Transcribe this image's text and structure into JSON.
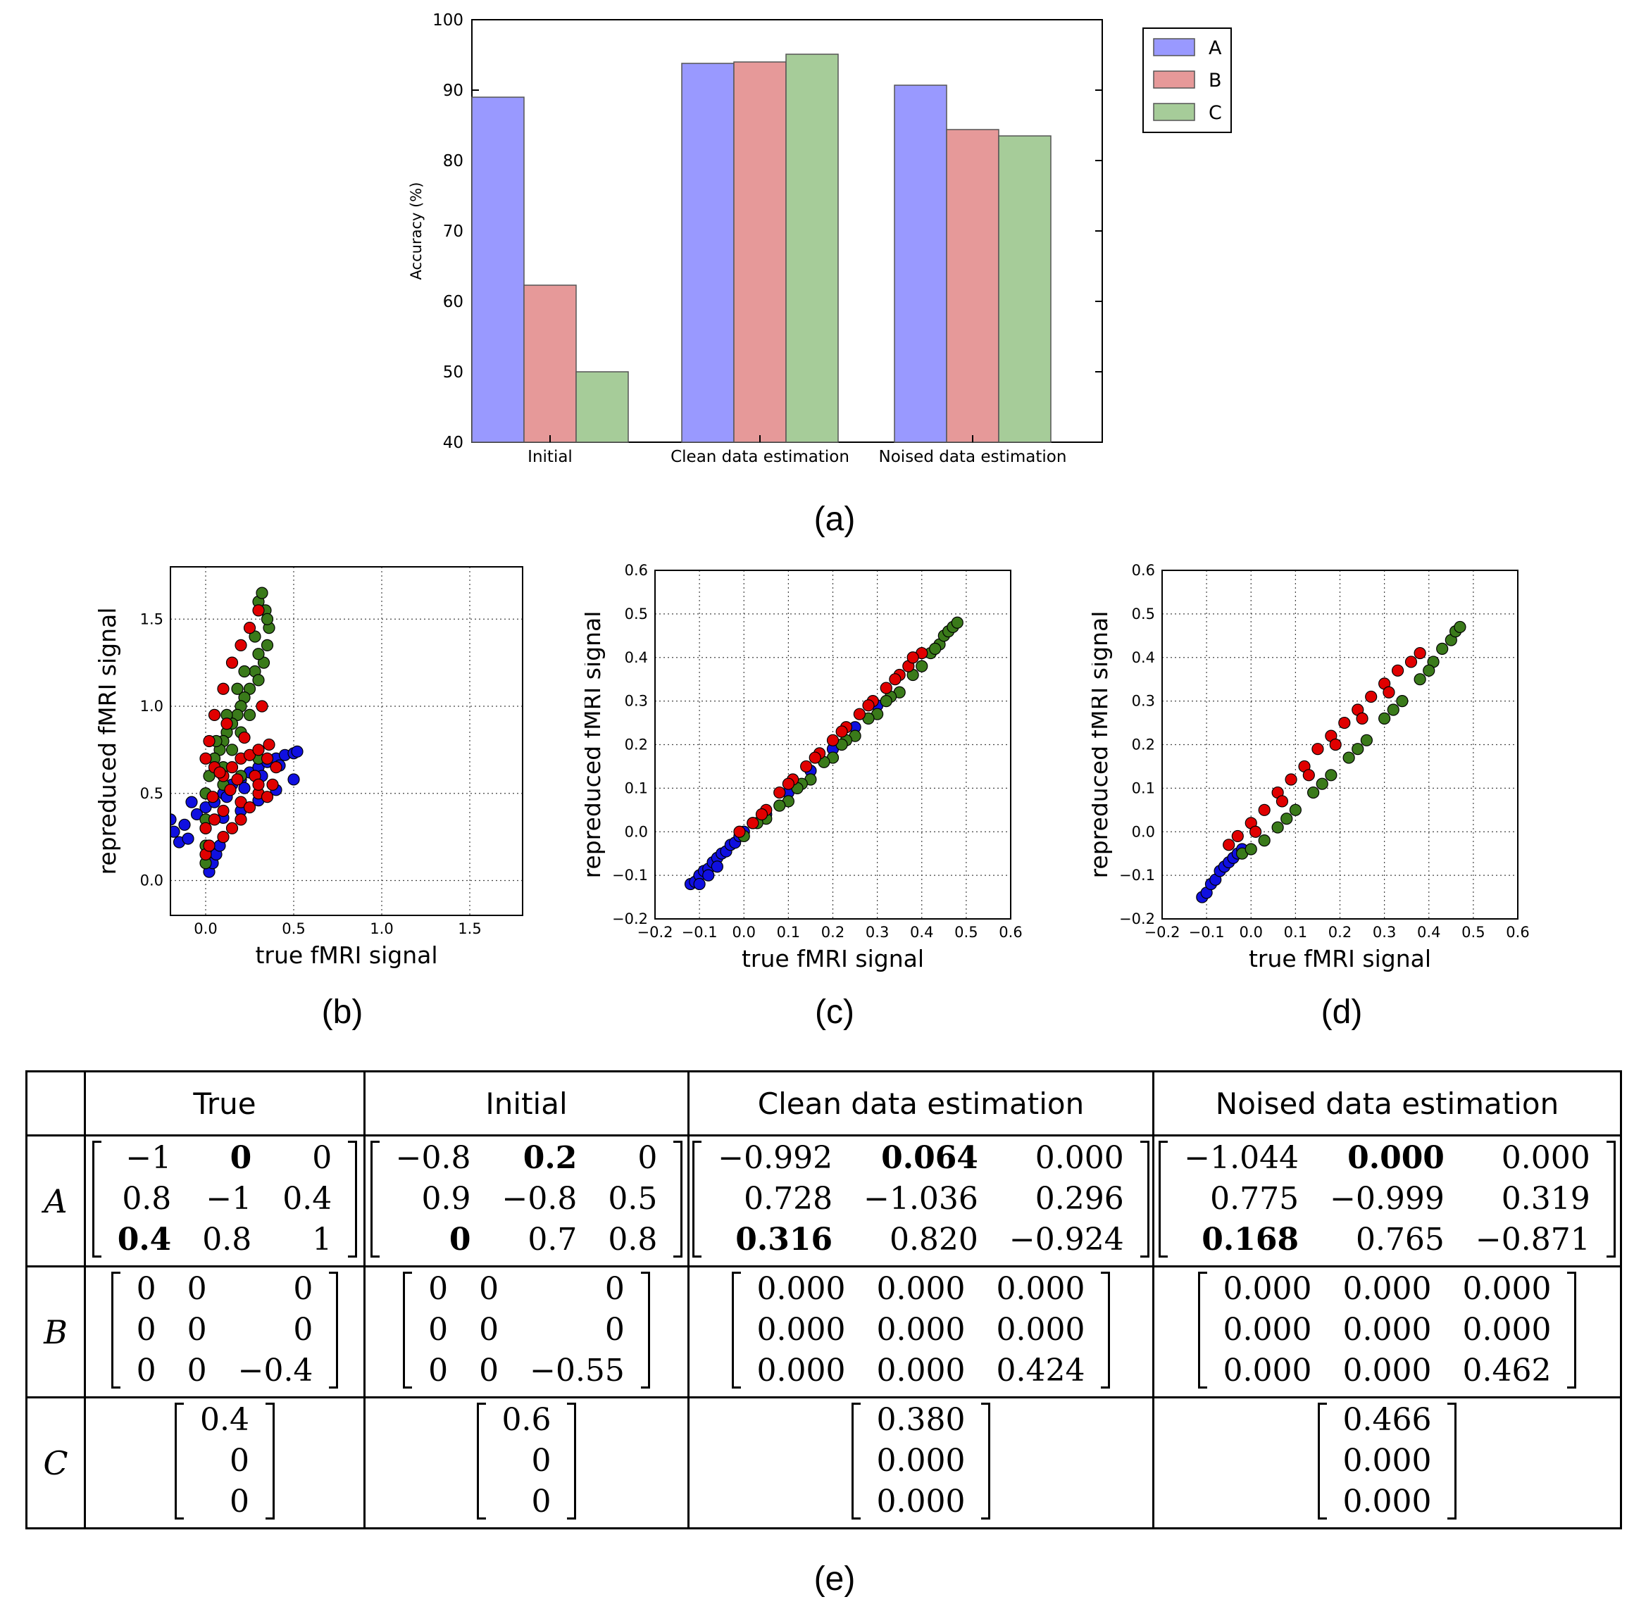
{
  "chart_data": [
    {
      "id": "a",
      "type": "bar",
      "caption": "(a)",
      "categories": [
        "Initial",
        "Clean data estimation",
        "Noised data estimation"
      ],
      "series": [
        {
          "name": "A",
          "color": "#9999ff",
          "values": [
            89.0,
            93.8,
            90.7
          ]
        },
        {
          "name": "B",
          "color": "#e69999",
          "values": [
            62.3,
            94.0,
            84.4
          ]
        },
        {
          "name": "C",
          "color": "#a6cc99",
          "values": [
            50.0,
            95.1,
            83.5
          ]
        }
      ],
      "ylabel": "Accuracy (%)",
      "ylim": [
        40,
        100
      ],
      "yticks": [
        "40",
        "50",
        "60",
        "70",
        "80",
        "90",
        "100"
      ],
      "legend": "top-right outside"
    },
    {
      "id": "b",
      "type": "scatter",
      "caption": "(b)",
      "xlabel": "true fMRI signal",
      "ylabel": "repreduced fMRI signal",
      "xlim": [
        -0.2,
        1.8
      ],
      "ylim": [
        -0.2,
        1.8
      ],
      "xticks": [
        "0.0",
        "0.5",
        "1.0",
        "1.5"
      ],
      "yticks": [
        "0.0",
        "0.5",
        "1.0",
        "1.5"
      ],
      "grid": true,
      "series": [
        {
          "name": "blue",
          "color": "#1010e0",
          "x": [
            -0.18,
            -0.12,
            -0.05,
            0.0,
            0.05,
            0.1,
            0.15,
            0.2,
            0.25,
            0.3,
            0.35,
            0.4,
            0.45,
            0.5,
            0.52,
            -0.15,
            -0.1,
            0.0,
            0.1,
            0.2,
            0.3,
            0.4,
            0.5,
            0.02,
            0.04,
            0.06,
            0.08,
            -0.2,
            -0.08,
            0.12,
            0.22,
            0.32,
            0.42
          ],
          "y": [
            0.28,
            0.32,
            0.38,
            0.42,
            0.45,
            0.5,
            0.55,
            0.58,
            0.62,
            0.65,
            0.68,
            0.7,
            0.72,
            0.73,
            0.74,
            0.22,
            0.24,
            0.3,
            0.36,
            0.4,
            0.46,
            0.52,
            0.58,
            0.05,
            0.1,
            0.15,
            0.2,
            0.35,
            0.45,
            0.48,
            0.53,
            0.6,
            0.66
          ]
        },
        {
          "name": "green",
          "color": "#3a7a1a",
          "x": [
            0.3,
            0.32,
            0.34,
            0.36,
            0.35,
            0.33,
            0.3,
            0.28,
            0.25,
            0.22,
            0.2,
            0.18,
            0.15,
            0.12,
            0.1,
            0.08,
            0.05,
            0.02,
            0.0,
            0.1,
            0.15,
            0.2,
            0.25,
            0.3,
            0.35,
            0.28,
            0.22,
            0.18,
            0.12,
            0.06,
            0.0,
            0.0,
            0.0,
            0.1,
            0.2,
            0.3
          ],
          "y": [
            1.6,
            1.65,
            1.55,
            1.45,
            1.35,
            1.25,
            1.3,
            1.2,
            1.1,
            1.05,
            1.0,
            0.95,
            0.9,
            0.85,
            0.8,
            0.75,
            0.7,
            0.6,
            0.5,
            0.65,
            0.75,
            0.85,
            0.95,
            1.15,
            1.5,
            1.4,
            1.2,
            1.1,
            0.95,
            0.8,
            0.35,
            0.2,
            0.1,
            0.55,
            0.6,
            0.7
          ]
        },
        {
          "name": "red",
          "color": "#e00000",
          "x": [
            0.3,
            0.25,
            0.2,
            0.15,
            0.1,
            0.05,
            0.02,
            0.0,
            0.05,
            0.1,
            0.15,
            0.2,
            0.25,
            0.3,
            0.35,
            0.4,
            0.38,
            0.3,
            0.2,
            0.1,
            0.05,
            0.15,
            0.25,
            0.35,
            0.28,
            0.18,
            0.08,
            0.0,
            0.0,
            0.02,
            0.1,
            0.2,
            0.3,
            0.22,
            0.12,
            0.32,
            0.36,
            0.04,
            0.14
          ],
          "y": [
            1.55,
            1.45,
            1.35,
            1.25,
            1.1,
            0.95,
            0.8,
            0.7,
            0.65,
            0.6,
            0.65,
            0.7,
            0.72,
            0.75,
            0.7,
            0.65,
            0.55,
            0.5,
            0.45,
            0.4,
            0.35,
            0.3,
            0.42,
            0.48,
            0.6,
            0.58,
            0.62,
            0.3,
            0.15,
            0.2,
            0.25,
            0.35,
            0.55,
            0.82,
            0.9,
            1.0,
            0.78,
            0.48,
            0.52
          ]
        }
      ]
    },
    {
      "id": "c",
      "type": "scatter",
      "caption": "(c)",
      "xlabel": "true fMRI signal",
      "ylabel": "repreduced fMRI signal",
      "xlim": [
        -0.2,
        0.6
      ],
      "ylim": [
        -0.2,
        0.6
      ],
      "xticks": [
        "−0.2",
        "−0.1",
        "0.0",
        "0.1",
        "0.2",
        "0.3",
        "0.4",
        "0.5",
        "0.6"
      ],
      "yticks": [
        "−0.2",
        "−0.1",
        "0.0",
        "0.1",
        "0.2",
        "0.3",
        "0.4",
        "0.5",
        "0.6"
      ],
      "grid": true,
      "series": [
        {
          "name": "blue",
          "color": "#1010e0",
          "x": [
            -0.12,
            -0.11,
            -0.1,
            -0.09,
            -0.08,
            -0.07,
            -0.06,
            -0.05,
            -0.04,
            -0.03,
            -0.02,
            -0.01,
            0.0,
            0.02,
            0.05,
            0.1,
            0.15,
            0.2,
            0.25,
            0.3,
            -0.1,
            -0.08,
            -0.06
          ],
          "y": [
            -0.12,
            -0.115,
            -0.1,
            -0.09,
            -0.085,
            -0.07,
            -0.06,
            -0.05,
            -0.045,
            -0.03,
            -0.025,
            -0.01,
            0.0,
            0.02,
            0.04,
            0.09,
            0.14,
            0.19,
            0.24,
            0.29,
            -0.12,
            -0.1,
            -0.08
          ]
        },
        {
          "name": "green",
          "color": "#3a7a1a",
          "x": [
            0.0,
            0.05,
            0.1,
            0.15,
            0.2,
            0.25,
            0.3,
            0.35,
            0.4,
            0.42,
            0.44,
            0.45,
            0.46,
            0.47,
            0.48,
            0.38,
            0.33,
            0.28,
            0.23,
            0.18,
            0.13,
            0.08,
            0.03,
            0.12,
            0.22,
            0.32,
            0.43
          ],
          "y": [
            -0.01,
            0.03,
            0.07,
            0.12,
            0.17,
            0.22,
            0.27,
            0.32,
            0.38,
            0.41,
            0.43,
            0.45,
            0.46,
            0.47,
            0.48,
            0.36,
            0.31,
            0.26,
            0.21,
            0.16,
            0.11,
            0.06,
            0.02,
            0.1,
            0.2,
            0.3,
            0.42
          ]
        },
        {
          "name": "red",
          "color": "#e00000",
          "x": [
            -0.01,
            0.02,
            0.05,
            0.08,
            0.11,
            0.14,
            0.17,
            0.2,
            0.23,
            0.26,
            0.29,
            0.32,
            0.35,
            0.37,
            0.4,
            0.04,
            0.1,
            0.16,
            0.22,
            0.28,
            0.34,
            0.38
          ],
          "y": [
            0.0,
            0.02,
            0.05,
            0.09,
            0.12,
            0.15,
            0.18,
            0.21,
            0.24,
            0.27,
            0.3,
            0.33,
            0.36,
            0.38,
            0.41,
            0.04,
            0.11,
            0.17,
            0.23,
            0.29,
            0.35,
            0.4
          ]
        }
      ]
    },
    {
      "id": "d",
      "type": "scatter",
      "caption": "(d)",
      "xlabel": "true fMRI signal",
      "ylabel": "repreduced fMRI signal",
      "xlim": [
        -0.2,
        0.6
      ],
      "ylim": [
        -0.2,
        0.6
      ],
      "xticks": [
        "−0.2",
        "−0.1",
        "0.0",
        "0.1",
        "0.2",
        "0.3",
        "0.4",
        "0.5",
        "0.6"
      ],
      "yticks": [
        "−0.2",
        "−0.1",
        "0.0",
        "0.1",
        "0.2",
        "0.3",
        "0.4",
        "0.5",
        "0.6"
      ],
      "grid": true,
      "series": [
        {
          "name": "blue",
          "color": "#1010e0",
          "x": [
            -0.11,
            -0.1,
            -0.09,
            -0.08,
            -0.07,
            -0.06,
            -0.05,
            -0.04,
            -0.03,
            -0.02
          ],
          "y": [
            -0.15,
            -0.14,
            -0.12,
            -0.11,
            -0.09,
            -0.08,
            -0.07,
            -0.06,
            -0.05,
            -0.04
          ]
        },
        {
          "name": "green",
          "color": "#3a7a1a",
          "x": [
            -0.02,
            0.0,
            0.03,
            0.06,
            0.1,
            0.14,
            0.18,
            0.22,
            0.26,
            0.3,
            0.34,
            0.38,
            0.41,
            0.43,
            0.45,
            0.46,
            0.47,
            0.08,
            0.16,
            0.24,
            0.32,
            0.4
          ],
          "y": [
            -0.05,
            -0.04,
            -0.02,
            0.01,
            0.05,
            0.09,
            0.13,
            0.17,
            0.21,
            0.26,
            0.3,
            0.35,
            0.39,
            0.42,
            0.44,
            0.46,
            0.47,
            0.03,
            0.11,
            0.19,
            0.28,
            0.37
          ]
        },
        {
          "name": "red",
          "color": "#e00000",
          "x": [
            -0.05,
            -0.03,
            0.0,
            0.03,
            0.06,
            0.09,
            0.12,
            0.15,
            0.18,
            0.21,
            0.24,
            0.27,
            0.3,
            0.33,
            0.36,
            0.38,
            0.01,
            0.07,
            0.13,
            0.19,
            0.25,
            0.31
          ],
          "y": [
            -0.03,
            -0.01,
            0.02,
            0.05,
            0.09,
            0.12,
            0.15,
            0.19,
            0.22,
            0.25,
            0.28,
            0.31,
            0.34,
            0.37,
            0.39,
            0.41,
            0.0,
            0.07,
            0.13,
            0.2,
            0.26,
            0.32
          ]
        }
      ]
    }
  ],
  "table": {
    "caption": "(e)",
    "headers": [
      "",
      "True",
      "Initial",
      "Clean data estimation",
      "Noised data estimation"
    ],
    "row_labels": [
      "A",
      "B",
      "C"
    ],
    "A": {
      "true": [
        [
          "−1",
          "0",
          "0"
        ],
        [
          "0.8",
          "−1",
          "0.4"
        ],
        [
          "0.4",
          "0.8",
          "1"
        ]
      ],
      "initial": [
        [
          "−0.8",
          "0.2",
          "0"
        ],
        [
          "0.9",
          "−0.8",
          "0.5"
        ],
        [
          "0",
          "0.7",
          "0.8"
        ]
      ],
      "clean": [
        [
          "−0.992",
          "0.064",
          "0.000"
        ],
        [
          "0.728",
          "−1.036",
          "0.296"
        ],
        [
          "0.316",
          "0.820",
          "−0.924"
        ]
      ],
      "noised": [
        [
          "−1.044",
          "0.000",
          "0.000"
        ],
        [
          "0.775",
          "−0.999",
          "0.319"
        ],
        [
          "0.168",
          "0.765",
          "−0.871"
        ]
      ]
    },
    "B": {
      "true": [
        [
          "0",
          "0",
          "0"
        ],
        [
          "0",
          "0",
          "0"
        ],
        [
          "0",
          "0",
          "−0.4"
        ]
      ],
      "initial": [
        [
          "0",
          "0",
          "0"
        ],
        [
          "0",
          "0",
          "0"
        ],
        [
          "0",
          "0",
          "−0.55"
        ]
      ],
      "clean": [
        [
          "0.000",
          "0.000",
          "0.000"
        ],
        [
          "0.000",
          "0.000",
          "0.000"
        ],
        [
          "0.000",
          "0.000",
          "0.424"
        ]
      ],
      "noised": [
        [
          "0.000",
          "0.000",
          "0.000"
        ],
        [
          "0.000",
          "0.000",
          "0.000"
        ],
        [
          "0.000",
          "0.000",
          "0.462"
        ]
      ]
    },
    "C": {
      "true": [
        "0.4",
        "0",
        "0"
      ],
      "initial": [
        "0.6",
        "0",
        "0"
      ],
      "clean": [
        "0.380",
        "0.000",
        "0.000"
      ],
      "noised": [
        "0.466",
        "0.000",
        "0.000"
      ]
    }
  }
}
